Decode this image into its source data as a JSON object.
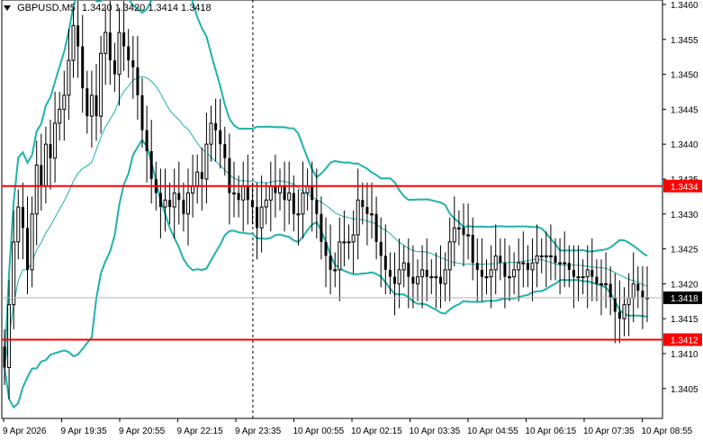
{
  "header": {
    "symbol": "GBPUSD,M5",
    "ohlc": "1.3420 1.3420 1.3414 1.3418"
  },
  "chart_data": {
    "type": "candlestick",
    "ylim": [
      1.34,
      1.346
    ],
    "y_ticks": [
      "1.3460",
      "1.3455",
      "1.3450",
      "1.3445",
      "1.3440",
      "1.3435",
      "1.3430",
      "1.3425",
      "1.3420",
      "1.3415",
      "1.3410",
      "1.3405"
    ],
    "x_ticks": [
      "9 Apr 2026",
      "9 Apr 19:35",
      "9 Apr 20:55",
      "9 Apr 22:15",
      "9 Apr 23:35",
      "10 Apr 00:55",
      "10 Apr 02:15",
      "10 Apr 03:35",
      "10 Apr 04:55",
      "10 Apr 06:15",
      "10 Apr 07:35",
      "10 Apr 08:55"
    ],
    "candle_count": 141,
    "horizontal_levels": [
      {
        "label": "1.3434",
        "price": 1.3434,
        "color": "#ff0000"
      },
      {
        "label": "1.3412",
        "price": 1.3412,
        "color": "#ff0000"
      }
    ],
    "current_price": {
      "label": "1.3418",
      "price": 1.3418
    },
    "day_separator_index": 54,
    "closes": [
      1.3408,
      1.3417,
      1.3426,
      1.3431,
      1.3428,
      1.3422,
      1.343,
      1.3437,
      1.3434,
      1.344,
      1.3438,
      1.3443,
      1.3445,
      1.3447,
      1.3452,
      1.3457,
      1.3454,
      1.3448,
      1.3444,
      1.3447,
      1.3444,
      1.3453,
      1.3456,
      1.3452,
      1.345,
      1.3456,
      1.3454,
      1.3452,
      1.3451,
      1.3447,
      1.3442,
      1.3439,
      1.3435,
      1.3433,
      1.3431,
      1.3432,
      1.3431,
      1.3433,
      1.3432,
      1.343,
      1.3433,
      1.3434,
      1.3436,
      1.3435,
      1.344,
      1.3443,
      1.3442,
      1.344,
      1.3438,
      1.3433,
      1.3433,
      1.3432,
      1.3434,
      1.3432,
      1.3431,
      1.3428,
      1.3431,
      1.3432,
      1.3434,
      1.3433,
      1.3434,
      1.3432,
      1.3433,
      1.343,
      1.343,
      1.3433,
      1.3434,
      1.3432,
      1.343,
      1.3426,
      1.3424,
      1.3422,
      1.3422,
      1.3426,
      1.3426,
      1.3426,
      1.3427,
      1.3432,
      1.3431,
      1.343,
      1.343,
      1.3426,
      1.3424,
      1.3422,
      1.3421,
      1.342,
      1.3422,
      1.3423,
      1.3421,
      1.342,
      1.3421,
      1.3422,
      1.3421,
      1.3421,
      1.3421,
      1.342,
      1.3422,
      1.3426,
      1.3428,
      1.3428,
      1.3427,
      1.3427,
      1.3423,
      1.3422,
      1.3421,
      1.3421,
      1.3422,
      1.3424,
      1.3423,
      1.3421,
      1.3421,
      1.3422,
      1.3423,
      1.3423,
      1.3422,
      1.3423,
      1.3424,
      1.3424,
      1.3424,
      1.3424,
      1.3423,
      1.3423,
      1.3423,
      1.3422,
      1.3421,
      1.3421,
      1.3421,
      1.3422,
      1.3421,
      1.342,
      1.342,
      1.342,
      1.3418,
      1.3416,
      1.3415,
      1.3417,
      1.3418,
      1.342,
      1.3419,
      1.3418,
      1.3418
    ]
  },
  "indicators": {
    "upper_band_color": "#20b2aa",
    "middle_band_color": "#20b2aa",
    "lower_band_color": "#20b2aa"
  },
  "colors": {
    "candle": "#000000",
    "grid": "#c8c8c8",
    "level": "#ff0000",
    "label_text": "#ffffff",
    "current_price_bg": "#000000"
  }
}
